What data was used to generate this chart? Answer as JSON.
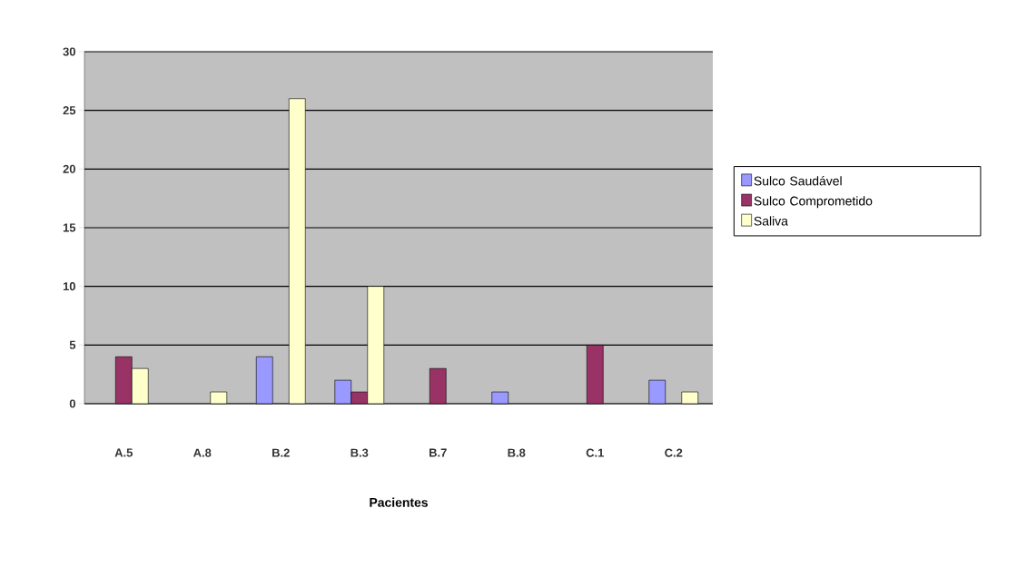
{
  "chart_data": {
    "type": "bar",
    "xlabel": "Pacientes",
    "categories": [
      "A.5",
      "A.8",
      "B.2",
      "B.3",
      "B.7",
      "B.8",
      "C.1",
      "C.2"
    ],
    "series": [
      {
        "name": "Sulco Saudável",
        "color": "#9999ff",
        "values": [
          null,
          null,
          4,
          2,
          null,
          1,
          null,
          2
        ]
      },
      {
        "name": "Sulco Comprometido",
        "color": "#993366",
        "values": [
          4,
          null,
          null,
          1,
          3,
          null,
          5,
          null
        ]
      },
      {
        "name": "Saliva",
        "color": "#ffffcc",
        "values": [
          3,
          1,
          26,
          10,
          null,
          null,
          null,
          1
        ]
      }
    ],
    "ylim": [
      0,
      30
    ],
    "yticks": [
      0,
      5,
      10,
      15,
      20,
      25,
      30
    ],
    "grid": "y",
    "legend": "right"
  }
}
